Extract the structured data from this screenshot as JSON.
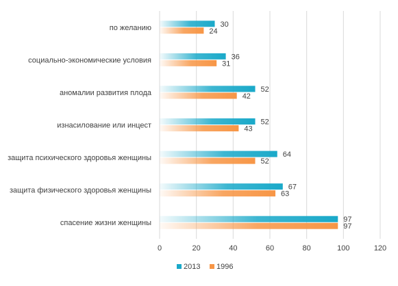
{
  "chart_data": {
    "type": "bar",
    "orientation": "horizontal",
    "categories": [
      "по желанию",
      "социально-экономические условия",
      "аномалии развития плода",
      "изнасилование или инцест",
      "защита психического здоровья женщины",
      "защита физического здоровья женщины",
      "спасение жизни женщины"
    ],
    "series": [
      {
        "name": "2013",
        "values": [
          30,
          36,
          52,
          52,
          64,
          67,
          97
        ],
        "color": "#1aa9c9"
      },
      {
        "name": "1996",
        "values": [
          24,
          31,
          42,
          43,
          52,
          63,
          97
        ],
        "color": "#f79646"
      }
    ],
    "xlim": [
      0,
      120
    ],
    "xticks": [
      0,
      20,
      40,
      60,
      80,
      100,
      120
    ],
    "grid": true,
    "legend_position": "bottom"
  }
}
